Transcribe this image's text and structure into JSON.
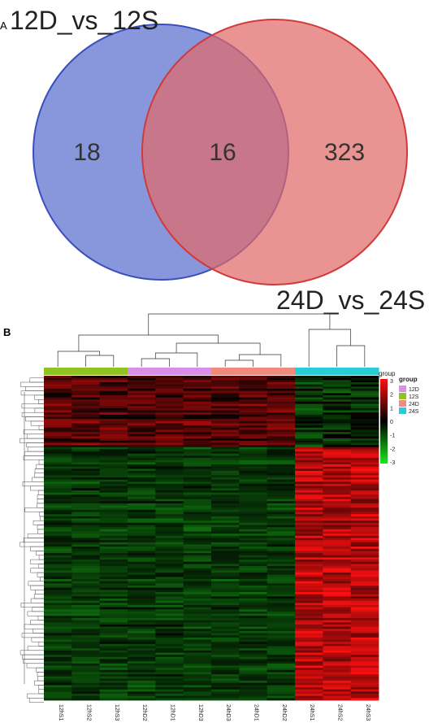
{
  "panel_a": {
    "label": "A",
    "chart_data": {
      "type": "venn",
      "sets": [
        {
          "name": "12D_vs_12S",
          "only_count": "18",
          "color": "#5a6fcf"
        },
        {
          "name": "24D_vs_24S",
          "only_count": "323",
          "color": "#e06a6a"
        }
      ],
      "intersection_count": "16"
    }
  },
  "panel_b": {
    "label": "B",
    "chart_data": {
      "type": "heatmap",
      "columns": [
        "12hS1",
        "12hS2",
        "12hS3",
        "12hD2",
        "12hD1",
        "12hD3",
        "24hD3",
        "24hD1",
        "24hD2",
        "24hS1",
        "24hS2",
        "24hS3"
      ],
      "column_groups": [
        "12S",
        "12S",
        "12S",
        "12D",
        "12D",
        "12D",
        "24D",
        "24D",
        "24D",
        "24S",
        "24S",
        "24S"
      ],
      "group_legend": {
        "title": "group",
        "items": [
          {
            "name": "12D",
            "color": "#d98ee8"
          },
          {
            "name": "12S",
            "color": "#8fc31f"
          },
          {
            "name": "24D",
            "color": "#f08a7d"
          },
          {
            "name": "24S",
            "color": "#28cdd6"
          }
        ]
      },
      "color_scale": {
        "ticks": [
          "3",
          "2",
          "1",
          "0",
          "-1",
          "-2",
          "-3"
        ],
        "range": [
          -3,
          3
        ],
        "low_color": "#1ee61e",
        "mid_color": "#000000",
        "high_color": "#ff1010"
      }
    }
  }
}
